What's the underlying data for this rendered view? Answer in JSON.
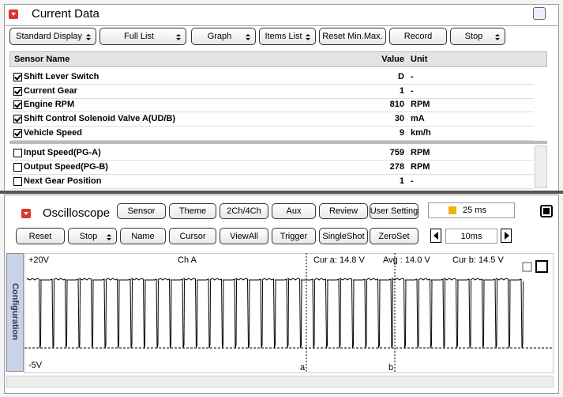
{
  "header": {
    "title": "Current Data"
  },
  "toolbar": [
    "Standard Display",
    "Full List",
    "Graph",
    "Items List",
    "Reset Min.Max.",
    "Record",
    "Stop"
  ],
  "table": {
    "columns": [
      "Sensor Name",
      "Value",
      "Unit"
    ],
    "rows": [
      [
        "Shift Lever Switch",
        "D",
        "-"
      ],
      [
        "Current Gear",
        1,
        "-"
      ],
      [
        "Engine RPM",
        810,
        "RPM"
      ],
      [
        "Shift Control Solenoid Valve A(UD/B)",
        30,
        "mA"
      ],
      [
        "Vehicle Speed",
        9,
        "km/h"
      ],
      [
        "Input Speed(PG-A)",
        759,
        "RPM"
      ],
      [
        "Output Speed(PG-B)",
        278,
        "RPM"
      ],
      [
        "Next Gear Position",
        1,
        "-"
      ]
    ]
  },
  "oscilloscope": {
    "title": "Oscilloscope",
    "buttons": [
      "Sensor",
      "Theme",
      "2Ch/4Ch",
      "Aux",
      "Review",
      "User Setting"
    ],
    "sample_time": "25 ms",
    "controls": [
      "Reset",
      "Stop",
      "Name",
      "Cursor",
      "ViewAll",
      "Trigger",
      "SingleShot",
      "ZeroSet"
    ],
    "timebase": "10ms",
    "scale_top": "+20V",
    "scale_bottom": "-5V",
    "channel": "Ch A",
    "cursor_a": "Cur a: 14.8 V",
    "average": "Avg : 14.0 V",
    "cursor_b": "Cur b: 14.5 V",
    "marker_a": "a",
    "marker_b": "b",
    "side_tab": "Configuration"
  }
}
